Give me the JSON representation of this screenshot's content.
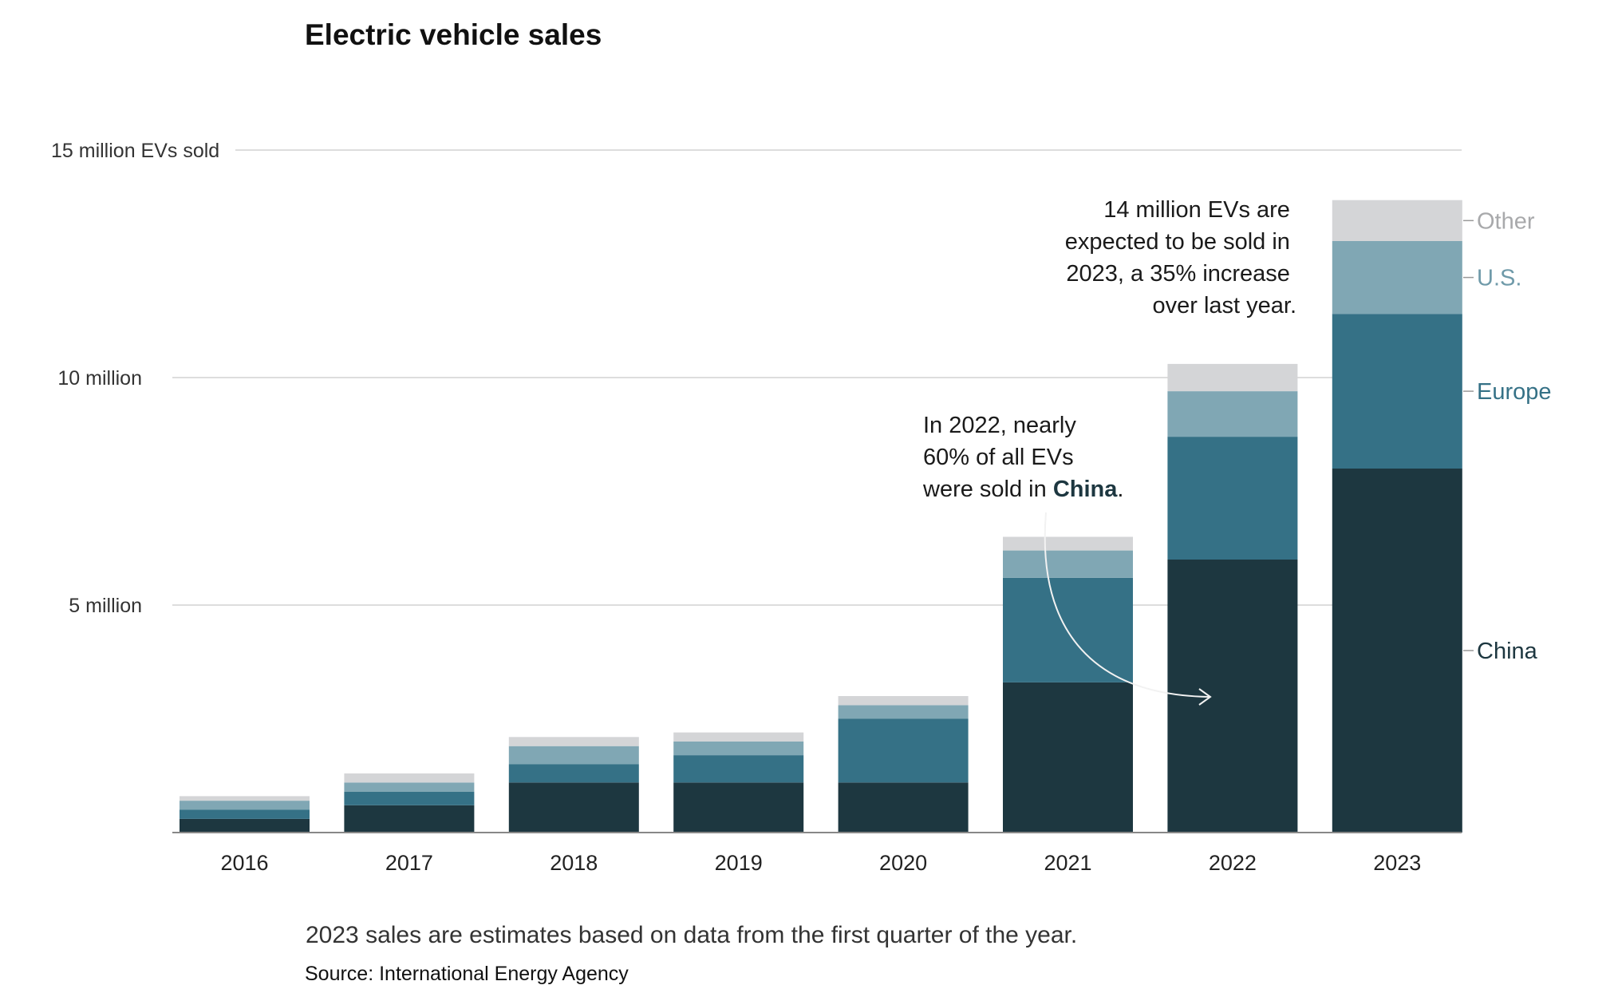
{
  "chart_data": {
    "type": "bar",
    "stacked": true,
    "title": "Electric vehicle sales",
    "categories": [
      "2016",
      "2017",
      "2018",
      "2019",
      "2020",
      "2021",
      "2022",
      "2023"
    ],
    "series": [
      {
        "name": "China",
        "color": "#1d3740",
        "values": [
          0.3,
          0.6,
          1.1,
          1.1,
          1.1,
          3.3,
          6.0,
          8.0
        ]
      },
      {
        "name": "Europe",
        "color": "#357186",
        "values": [
          0.2,
          0.3,
          0.4,
          0.6,
          1.4,
          2.3,
          2.7,
          3.4
        ]
      },
      {
        "name": "U.S.",
        "color": "#80a7b4",
        "values": [
          0.2,
          0.2,
          0.4,
          0.3,
          0.3,
          0.6,
          1.0,
          1.6
        ]
      },
      {
        "name": "Other",
        "color": "#d4d5d7",
        "values": [
          0.1,
          0.2,
          0.2,
          0.2,
          0.2,
          0.3,
          0.6,
          0.9
        ]
      }
    ],
    "y_ticks": [
      {
        "value": 5,
        "label": "5 million"
      },
      {
        "value": 10,
        "label": "10 million"
      },
      {
        "value": 15,
        "label": "15 million EVs sold"
      }
    ],
    "ylim": [
      0,
      15
    ],
    "grid": true,
    "legend_placement": "right of last bar",
    "annotations": {
      "increase": [
        "14 million EVs are",
        "expected to be sold in",
        "2023, a 35% increase",
        "over last year."
      ],
      "china_line1": "In 2022, nearly",
      "china_line2": "60% of all EVs",
      "china_line3_prefix": "were sold in ",
      "china_line3_bold": "China",
      "china_line3_suffix": "."
    },
    "note": "2023 sales are estimates based on data from the first quarter of the year.",
    "source": "Source: International Energy Agency"
  },
  "colors": {
    "grid": "#dddddd",
    "axis": "#888888",
    "legend_china": "#1d3740",
    "legend_europe": "#357186",
    "legend_us": "#6f9aa9",
    "legend_other": "#a8a9ab"
  }
}
